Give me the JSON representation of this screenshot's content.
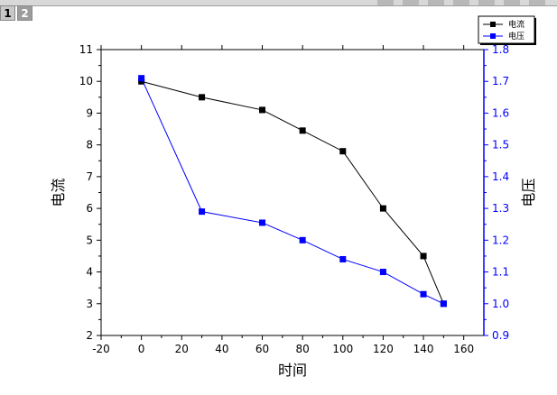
{
  "tabs": [
    "1",
    "2"
  ],
  "chart_data": {
    "type": "line",
    "xlabel": "时间",
    "ylabel_left": "电流",
    "ylabel_right": "电压",
    "xlim": [
      -20,
      170
    ],
    "ylim_left": [
      2,
      11
    ],
    "ylim_right": [
      0.9,
      1.8
    ],
    "x_ticks": [
      -20,
      0,
      20,
      40,
      60,
      80,
      100,
      120,
      140,
      160
    ],
    "y_left_ticks": [
      2,
      3,
      4,
      5,
      6,
      7,
      8,
      9,
      10,
      11
    ],
    "y_right_ticks": [
      0.9,
      1.0,
      1.1,
      1.2,
      1.3,
      1.4,
      1.5,
      1.6,
      1.7,
      1.8
    ],
    "legend_position": "top-right",
    "grid": false,
    "series": [
      {
        "name": "电流",
        "axis": "left",
        "color": "#000000",
        "x": [
          0,
          30,
          60,
          80,
          100,
          120,
          140,
          150
        ],
        "y": [
          10.0,
          9.5,
          9.1,
          8.45,
          7.8,
          6.0,
          4.5,
          3.0
        ]
      },
      {
        "name": "电压",
        "axis": "right",
        "color": "#0000ff",
        "x": [
          0,
          30,
          60,
          80,
          100,
          120,
          140,
          150
        ],
        "y": [
          1.71,
          1.29,
          1.255,
          1.2,
          1.14,
          1.1,
          1.03,
          1.0
        ]
      }
    ]
  },
  "colors": {
    "right_axis": "#0000ff",
    "left_axis": "#000000"
  }
}
